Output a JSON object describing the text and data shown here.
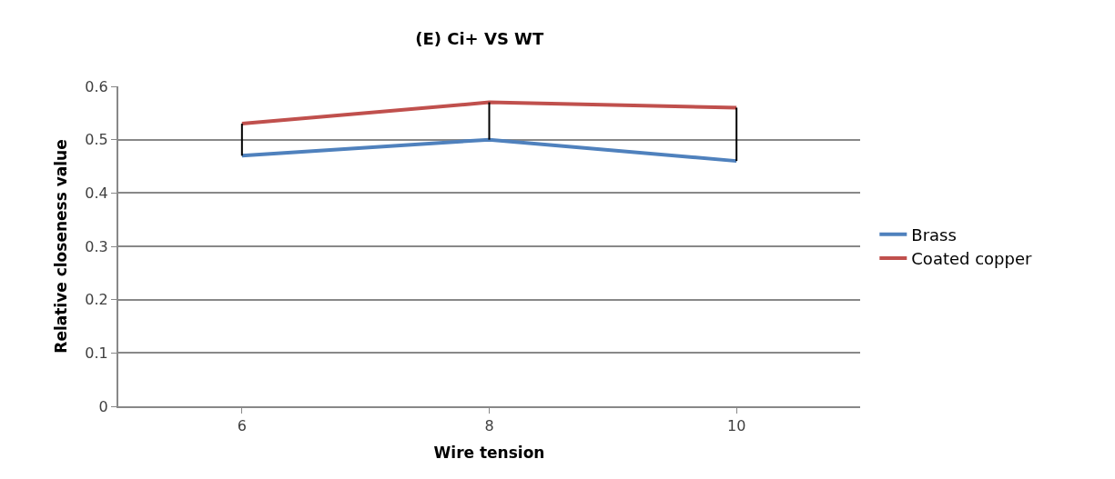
{
  "chart_data": {
    "type": "line",
    "title": "(E) Ci+ VS WT",
    "xlabel": "Wire tension",
    "ylabel": "Relative closeness value",
    "categories": [
      "6",
      "8",
      "10"
    ],
    "series": [
      {
        "name": "Brass",
        "color": "#4f81bd",
        "values": [
          0.47,
          0.5,
          0.46
        ],
        "errors": [
          [
            0.47,
            0.53
          ],
          [
            0.5,
            0.57
          ],
          [
            0.46,
            0.56
          ]
        ]
      },
      {
        "name": "Coated copper",
        "color": "#c0504d",
        "values": [
          0.53,
          0.57,
          0.56
        ]
      }
    ],
    "ylim": [
      0,
      0.6
    ],
    "yticks": [
      0,
      0.1,
      0.2,
      0.3,
      0.4,
      0.5,
      0.6
    ],
    "grid": "y",
    "legend": "right",
    "marker": "none",
    "line_style": "solid"
  }
}
